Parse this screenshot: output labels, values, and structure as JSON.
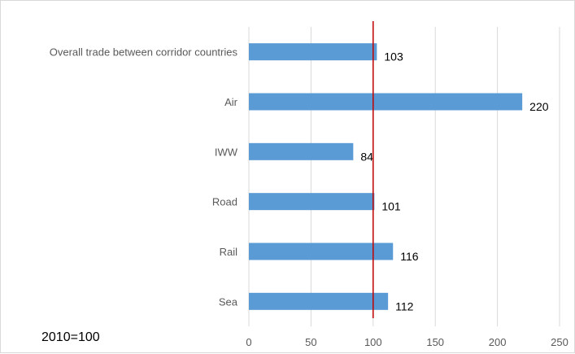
{
  "chart_data": {
    "type": "bar",
    "orientation": "horizontal",
    "categories": [
      "Overall trade between corridor countries",
      "Air",
      "IWW",
      "Road",
      "Rail",
      "Sea"
    ],
    "values": [
      103,
      220,
      84,
      101,
      116,
      112
    ],
    "xlim": [
      0,
      250
    ],
    "xticks": [
      "0",
      "50",
      "100",
      "150",
      "200",
      "250"
    ],
    "reference_line": 100,
    "grid": true,
    "bar_color": "#5b9bd5",
    "reference_color": "#c00000",
    "note": "2010=100"
  }
}
